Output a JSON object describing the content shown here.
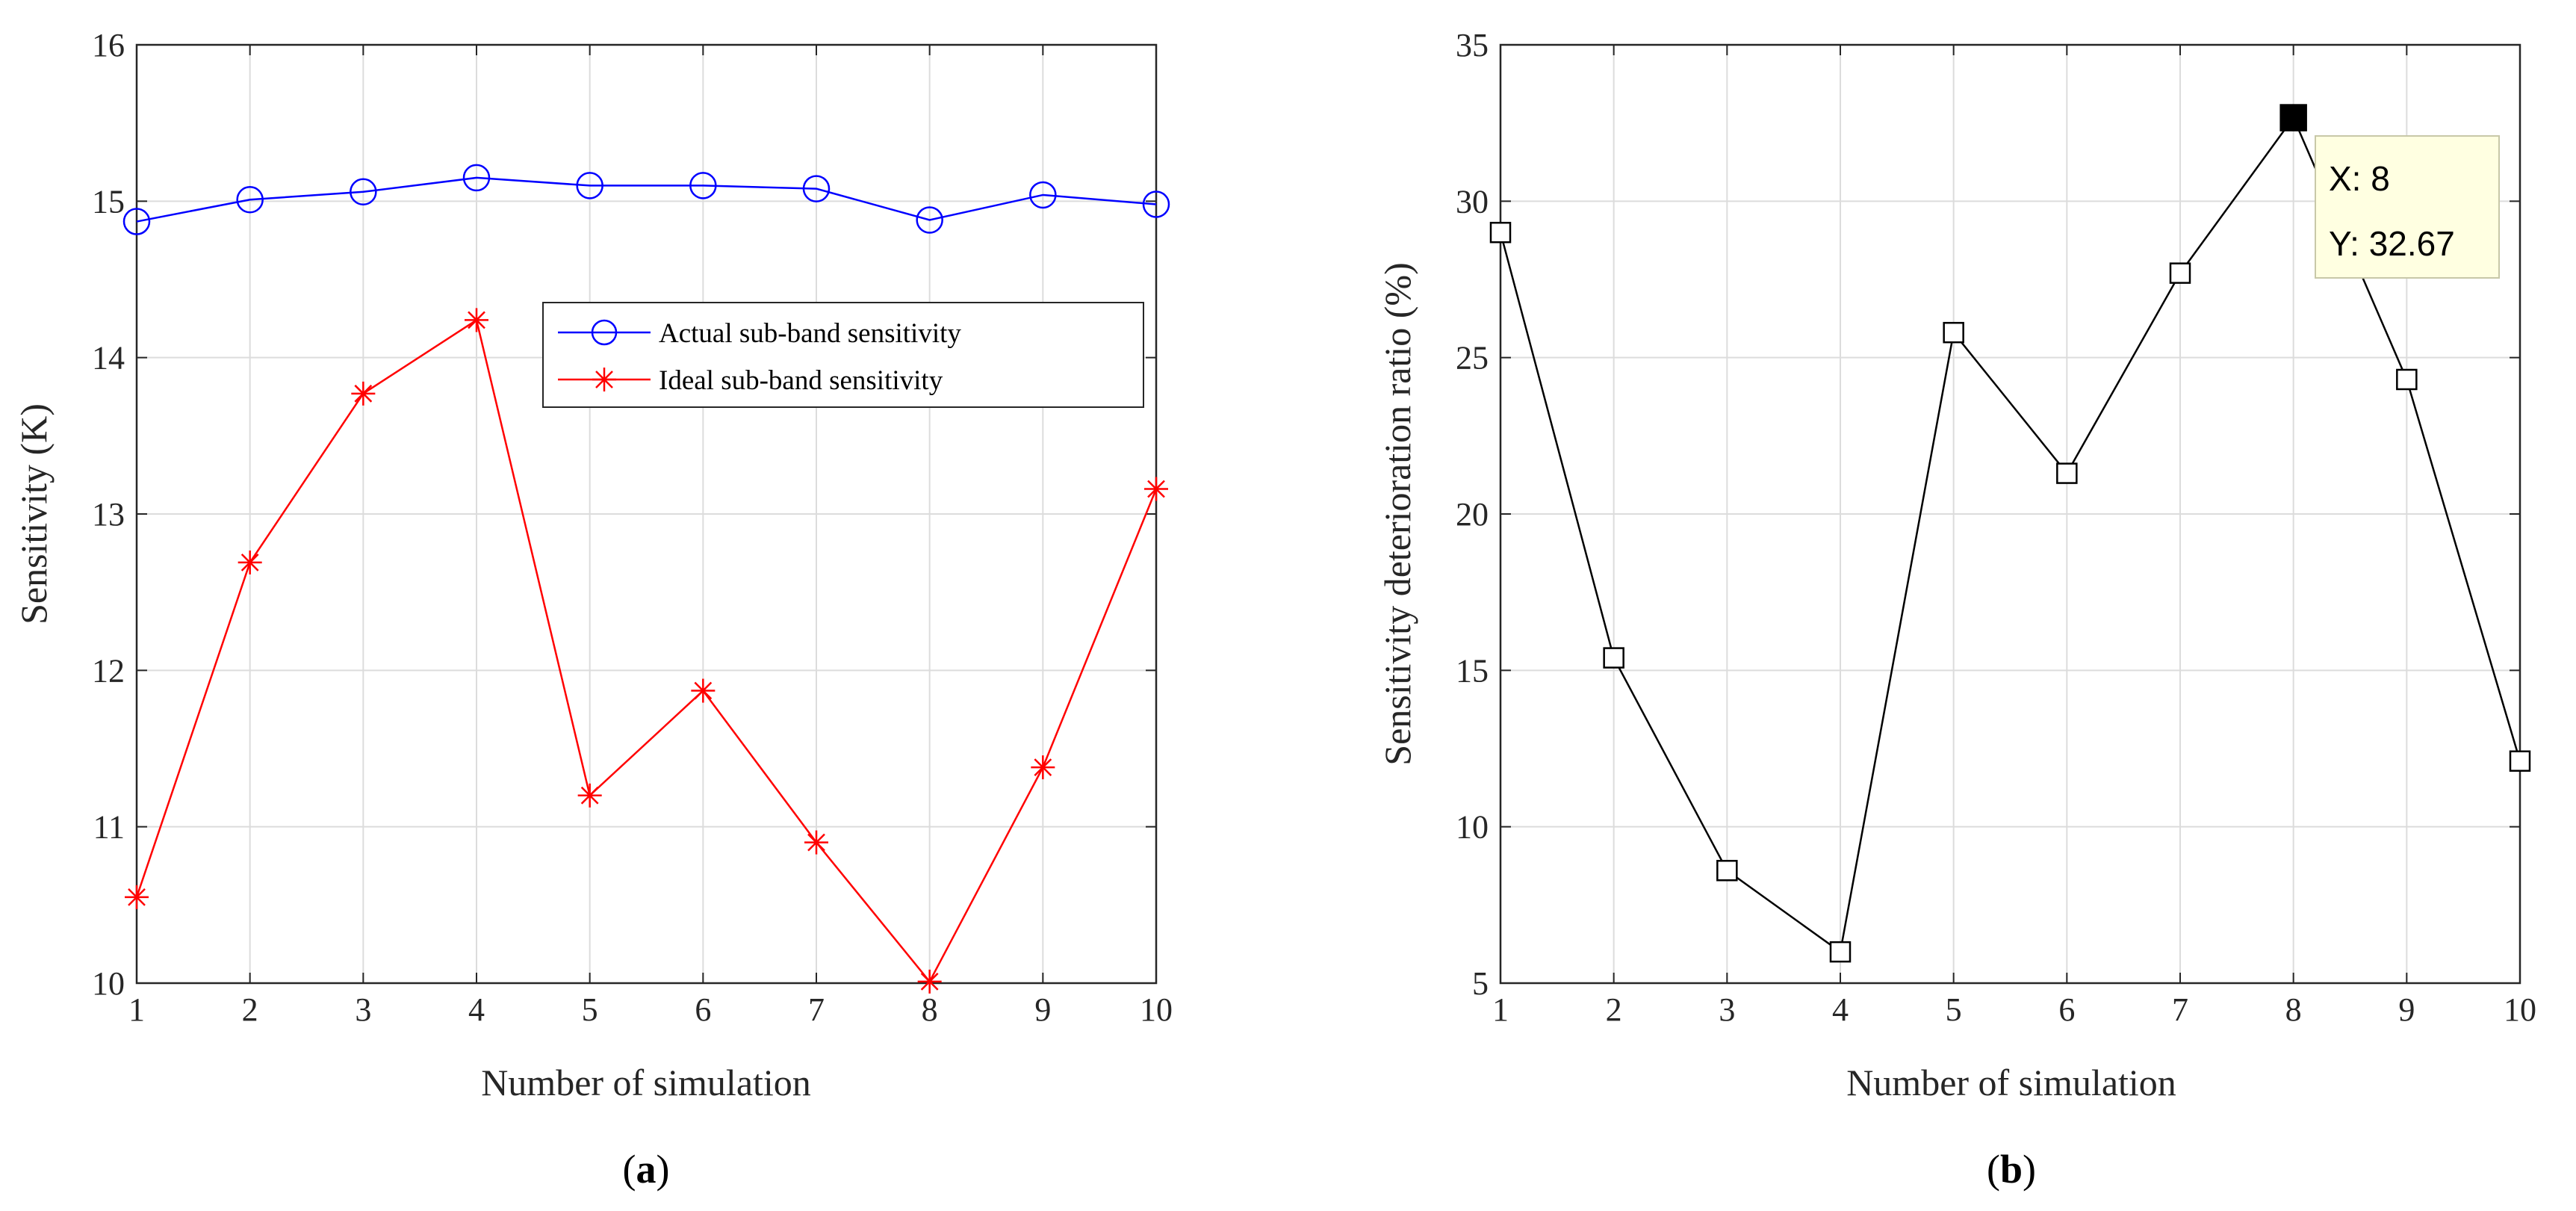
{
  "chart_data": [
    {
      "type": "line",
      "id": "a",
      "caption": {
        "open": "(",
        "letter": "a",
        "close": ")"
      },
      "xlabel": "Number of simulation",
      "ylabel": "Sensitivity (K)",
      "xlim": [
        1,
        10
      ],
      "ylim": [
        10,
        16
      ],
      "x_ticks": [
        1,
        2,
        3,
        4,
        5,
        6,
        7,
        8,
        9,
        10
      ],
      "y_ticks": [
        10,
        11,
        12,
        13,
        14,
        15,
        16
      ],
      "grid": true,
      "legend_position": "upper-right",
      "x": [
        1,
        2,
        3,
        4,
        5,
        6,
        7,
        8,
        9,
        10
      ],
      "series": [
        {
          "name": "Actual sub-band sensitivity",
          "color": "#0000FF",
          "marker": "circle",
          "values": [
            14.87,
            15.01,
            15.06,
            15.15,
            15.1,
            15.1,
            15.08,
            14.88,
            15.04,
            14.98
          ]
        },
        {
          "name": "Ideal sub-band sensitivity",
          "color": "#FF0000",
          "marker": "asterisk",
          "values": [
            10.55,
            12.69,
            13.77,
            14.24,
            11.2,
            11.87,
            10.9,
            10.01,
            11.38,
            13.16
          ]
        }
      ]
    },
    {
      "type": "line",
      "id": "b",
      "caption": {
        "open": "(",
        "letter": "b",
        "close": ")"
      },
      "xlabel": "Number of simulation",
      "ylabel": "Sensitivity deterioration ratio (%)",
      "xlim": [
        1,
        10
      ],
      "ylim": [
        5,
        35
      ],
      "x_ticks": [
        1,
        2,
        3,
        4,
        5,
        6,
        7,
        8,
        9,
        10
      ],
      "y_ticks": [
        5,
        10,
        15,
        20,
        25,
        30,
        35
      ],
      "grid": true,
      "x": [
        1,
        2,
        3,
        4,
        5,
        6,
        7,
        8,
        9,
        10
      ],
      "series": [
        {
          "name": "Sensitivity deterioration ratio",
          "color": "#000000",
          "marker": "square",
          "values": [
            29.0,
            15.4,
            8.6,
            6.0,
            25.8,
            21.3,
            27.7,
            32.67,
            24.3,
            12.1
          ]
        }
      ],
      "datatip": {
        "x": 8,
        "y": 32.67,
        "x_text": "X: 8",
        "y_text": "Y: 32.67",
        "background": "#FFFFE1"
      }
    }
  ]
}
